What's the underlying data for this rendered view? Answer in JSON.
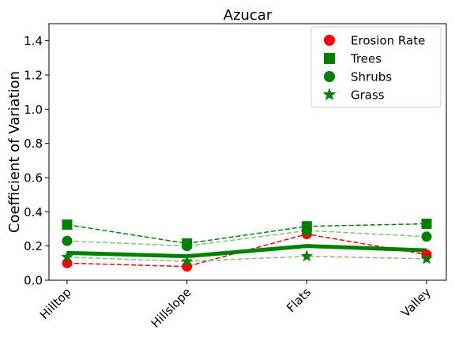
{
  "chart_data": {
    "type": "line",
    "title": "Azucar",
    "xlabel": "",
    "ylabel": "Coefficient of Variation",
    "categories": [
      "Hilltop",
      "Hillslope",
      "Flats",
      "Valley"
    ],
    "ylim": [
      0.0,
      1.5
    ],
    "yticks": [
      "0.0",
      "0.2",
      "0.4",
      "0.6",
      "0.8",
      "1.0",
      "1.2",
      "1.4"
    ],
    "grid": false,
    "legend_position": "top-right",
    "series": [
      {
        "name": "Erosion Rate",
        "marker": "circle",
        "color": "#ff0000",
        "line": "dashed",
        "values": [
          0.1,
          0.08,
          0.27,
          0.15
        ]
      },
      {
        "name": "Trees",
        "marker": "square",
        "color": "#008000",
        "line": "dashed",
        "values": [
          0.325,
          0.215,
          0.315,
          0.33
        ]
      },
      {
        "name": "Shrubs",
        "marker": "circle",
        "color": "#008000",
        "line": "dashed-light",
        "values": [
          0.23,
          0.2,
          0.29,
          0.255
        ]
      },
      {
        "name": "Grass",
        "marker": "star",
        "color": "#008000",
        "line": "dashed-light",
        "values": [
          0.135,
          0.11,
          0.14,
          0.125
        ]
      }
    ],
    "mean_line": {
      "color": "#008000",
      "values": [
        0.16,
        0.14,
        0.2,
        0.175
      ]
    }
  }
}
